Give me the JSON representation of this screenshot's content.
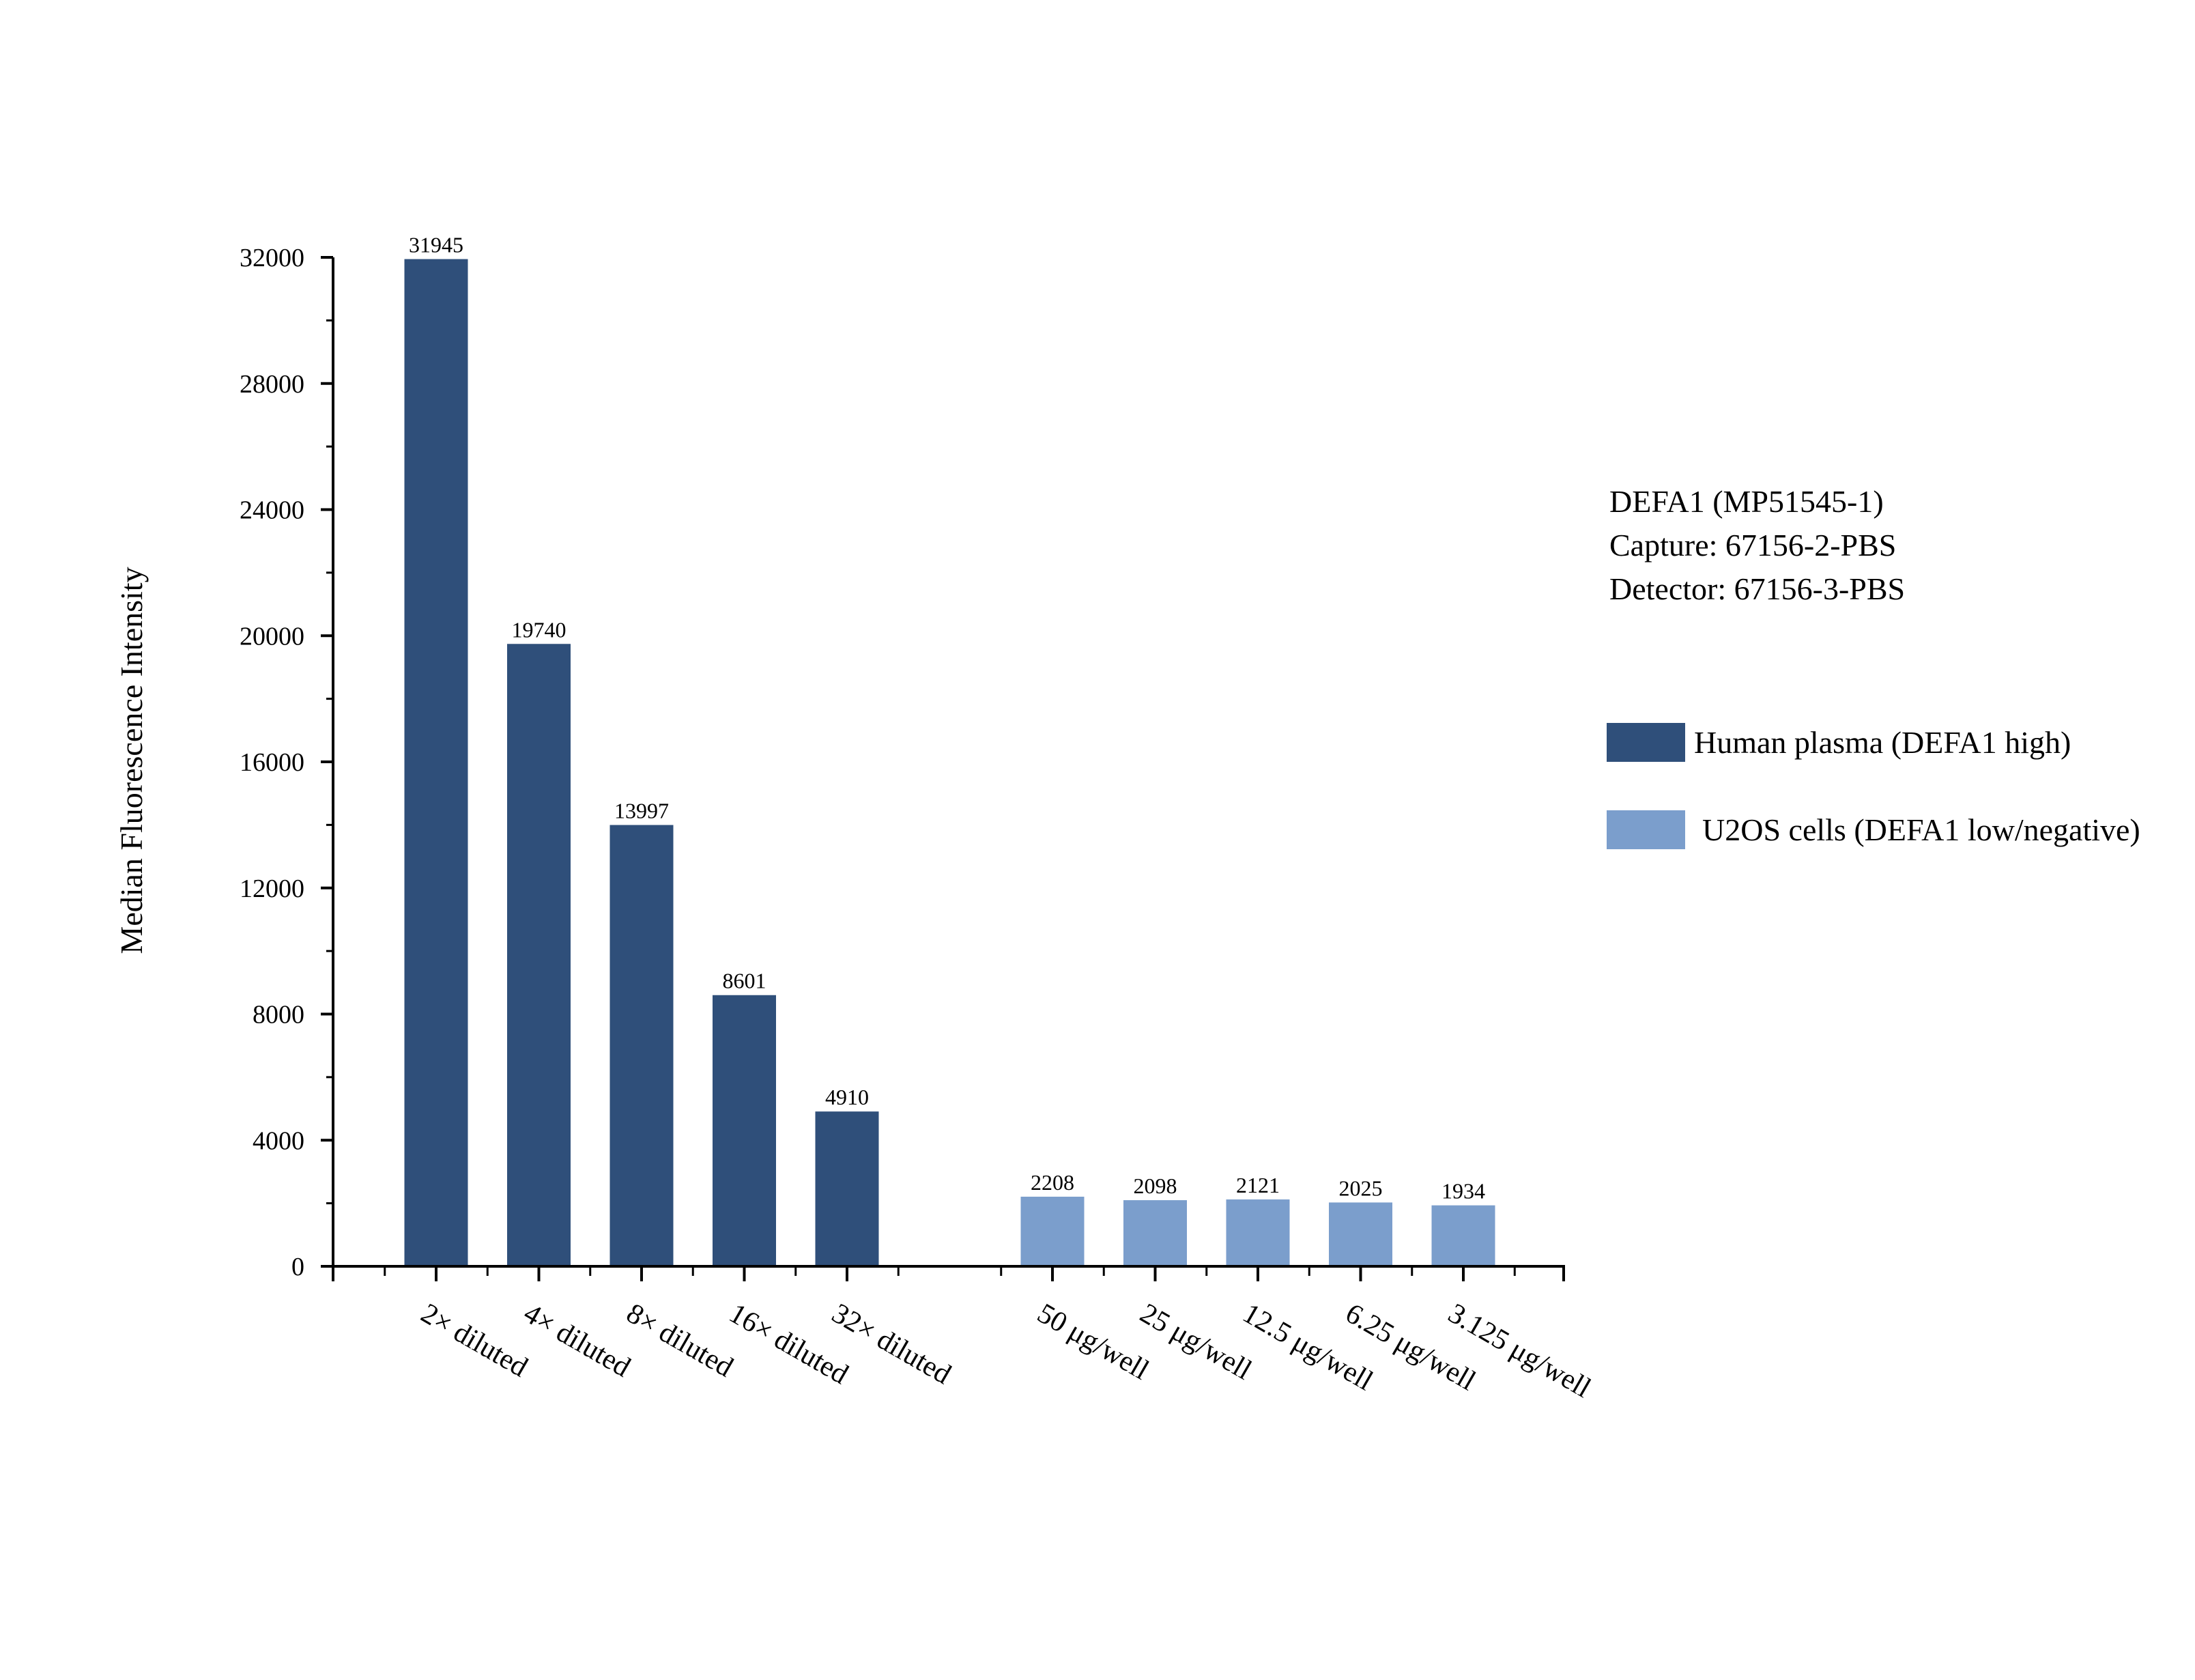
{
  "chart_data": {
    "type": "bar",
    "ylabel": "Median Fluorescence Intensity",
    "ylim": [
      0,
      32000
    ],
    "yticks": [
      0,
      4000,
      8000,
      12000,
      16000,
      20000,
      24000,
      28000,
      32000
    ],
    "grid": false,
    "legend_position": "right",
    "annotation_lines": [
      "DEFA1 (MP51545-1)",
      "Capture: 67156-2-PBS",
      "Detector: 67156-3-PBS"
    ],
    "series": [
      {
        "name": "Human plasma (DEFA1 high)",
        "color": "#2f4f7a",
        "categories": [
          "2× diluted",
          "4× diluted",
          "8× diluted",
          "16× diluted",
          "32× diluted"
        ],
        "values": [
          31945,
          19740,
          13997,
          8601,
          4910
        ]
      },
      {
        "name": "U2OS cells (DEFA1 low/negative)",
        "color": "#7b9ecc",
        "categories": [
          "50 μg/well",
          "25 μg/well",
          "12.5 μg/well",
          "6.25 μg/well",
          "3.125 μg/well"
        ],
        "values": [
          2208,
          2098,
          2121,
          2025,
          1934
        ]
      }
    ]
  }
}
